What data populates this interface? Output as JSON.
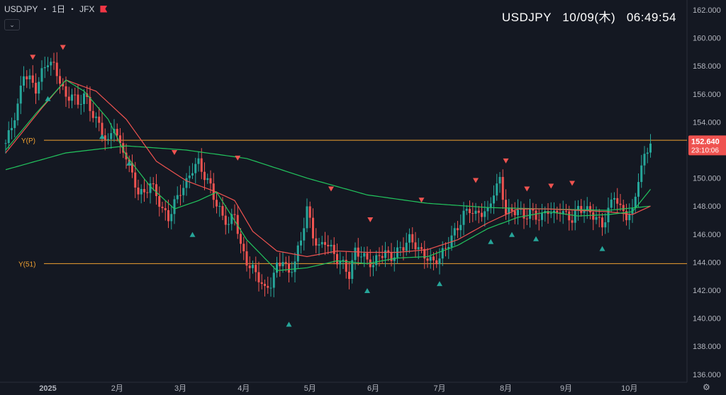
{
  "header": {
    "symbol": "USDJPY",
    "interval": "1日",
    "exchange": "JFX",
    "sep": "・",
    "collapse_icon": "chevron-down-icon",
    "clock": "USDJPY   10/09(木)   06:49:54"
  },
  "colors": {
    "background": "#141822",
    "up": "#26a69a",
    "down": "#ef5350",
    "ma_short": "#ef5350",
    "ma_mid": "#22c55e",
    "level": "#f0a030",
    "last_price_bg": "#ef5350"
  },
  "chart_data": {
    "type": "candlestick",
    "x_tick_labels": [
      "2025",
      "2月",
      "3月",
      "4月",
      "5月",
      "6月",
      "7月",
      "8月",
      "9月",
      "10月"
    ],
    "y_tick_labels": [
      "136.000",
      "138.000",
      "140.000",
      "142.000",
      "144.000",
      "146.000",
      "148.000",
      "150.000",
      "152.000",
      "154.000",
      "156.000",
      "158.000",
      "160.000",
      "162.000"
    ],
    "ylim": [
      135.5,
      162.5
    ],
    "levels": [
      {
        "label": "Y(P)",
        "value": 152.7
      },
      {
        "label": "Y(51)",
        "value": 143.9
      }
    ],
    "last_price": {
      "value": "152.640",
      "countdown": "23:10:06"
    },
    "close_path": [
      [
        0,
        152.5
      ],
      [
        2,
        153.5
      ],
      [
        4,
        155.0
      ],
      [
        6,
        157.5
      ],
      [
        8,
        157.2
      ],
      [
        10,
        156.5
      ],
      [
        12,
        157.5
      ],
      [
        14,
        158.2
      ],
      [
        16,
        157.8
      ],
      [
        18,
        157.0
      ],
      [
        20,
        155.8
      ],
      [
        22,
        156.2
      ],
      [
        24,
        155.2
      ],
      [
        26,
        155.8
      ],
      [
        28,
        154.8
      ],
      [
        30,
        154.2
      ],
      [
        32,
        153.5
      ],
      [
        34,
        152.6
      ],
      [
        36,
        153.8
      ],
      [
        38,
        152.0
      ],
      [
        40,
        151.5
      ],
      [
        42,
        150.2
      ],
      [
        44,
        149.2
      ],
      [
        46,
        149.0
      ],
      [
        48,
        149.6
      ],
      [
        50,
        148.6
      ],
      [
        52,
        147.6
      ],
      [
        54,
        147.2
      ],
      [
        56,
        148.4
      ],
      [
        58,
        149.2
      ],
      [
        60,
        149.6
      ],
      [
        62,
        150.5
      ],
      [
        64,
        151.0
      ],
      [
        66,
        150.2
      ],
      [
        68,
        149.6
      ],
      [
        70,
        148.2
      ],
      [
        72,
        147.2
      ],
      [
        74,
        146.5
      ],
      [
        76,
        147.4
      ],
      [
        78,
        145.2
      ],
      [
        80,
        144.2
      ],
      [
        82,
        143.6
      ],
      [
        84,
        142.8
      ],
      [
        86,
        141.8
      ],
      [
        88,
        142.4
      ],
      [
        90,
        143.8
      ],
      [
        92,
        144.4
      ],
      [
        94,
        143.2
      ],
      [
        96,
        144.0
      ],
      [
        98,
        145.4
      ],
      [
        100,
        147.8
      ],
      [
        102,
        146.0
      ],
      [
        104,
        145.2
      ],
      [
        106,
        145.6
      ],
      [
        108,
        144.8
      ],
      [
        110,
        144.0
      ],
      [
        112,
        143.8
      ],
      [
        114,
        143.2
      ],
      [
        116,
        145.0
      ],
      [
        118,
        144.6
      ],
      [
        120,
        144.0
      ],
      [
        122,
        143.6
      ],
      [
        124,
        144.5
      ],
      [
        126,
        144.8
      ],
      [
        128,
        144.5
      ],
      [
        130,
        144.8
      ],
      [
        132,
        145.0
      ],
      [
        134,
        145.5
      ],
      [
        136,
        145.2
      ],
      [
        138,
        144.8
      ],
      [
        140,
        144.5
      ],
      [
        142,
        144.0
      ],
      [
        144,
        144.2
      ],
      [
        146,
        144.8
      ],
      [
        148,
        145.8
      ],
      [
        150,
        146.6
      ],
      [
        152,
        147.6
      ],
      [
        154,
        147.8
      ],
      [
        156,
        147.2
      ],
      [
        158,
        147.4
      ],
      [
        160,
        147.6
      ],
      [
        162,
        149.2
      ],
      [
        164,
        150.0
      ],
      [
        166,
        147.6
      ],
      [
        168,
        147.4
      ],
      [
        170,
        147.6
      ],
      [
        172,
        147.2
      ],
      [
        174,
        147.8
      ],
      [
        176,
        147.4
      ],
      [
        178,
        147.2
      ],
      [
        180,
        147.6
      ],
      [
        182,
        147.2
      ],
      [
        184,
        147.8
      ],
      [
        186,
        147.5
      ],
      [
        188,
        147.2
      ],
      [
        190,
        147.8
      ],
      [
        192,
        147.6
      ],
      [
        194,
        147.4
      ],
      [
        196,
        147.2
      ],
      [
        198,
        146.8
      ],
      [
        200,
        147.8
      ],
      [
        202,
        148.8
      ],
      [
        204,
        147.6
      ],
      [
        206,
        147.2
      ],
      [
        208,
        147.6
      ],
      [
        210,
        150.2
      ],
      [
        212,
        151.6
      ],
      [
        214,
        152.6
      ]
    ],
    "ma_short_path": [
      [
        0,
        151.8
      ],
      [
        12,
        155.0
      ],
      [
        20,
        157.0
      ],
      [
        30,
        156.2
      ],
      [
        40,
        154.2
      ],
      [
        50,
        151.2
      ],
      [
        60,
        149.8
      ],
      [
        70,
        149.0
      ],
      [
        76,
        148.4
      ],
      [
        82,
        146.2
      ],
      [
        90,
        144.8
      ],
      [
        100,
        144.4
      ],
      [
        110,
        144.8
      ],
      [
        120,
        144.7
      ],
      [
        130,
        144.7
      ],
      [
        140,
        144.9
      ],
      [
        150,
        145.6
      ],
      [
        160,
        146.8
      ],
      [
        170,
        147.8
      ],
      [
        180,
        147.8
      ],
      [
        190,
        147.7
      ],
      [
        200,
        147.6
      ],
      [
        208,
        147.4
      ],
      [
        214,
        148.0
      ]
    ],
    "ma_mid_path": [
      [
        0,
        152.0
      ],
      [
        10,
        154.6
      ],
      [
        20,
        157.0
      ],
      [
        26,
        156.2
      ],
      [
        34,
        154.2
      ],
      [
        40,
        151.6
      ],
      [
        48,
        149.4
      ],
      [
        56,
        147.8
      ],
      [
        64,
        148.4
      ],
      [
        70,
        149.0
      ],
      [
        80,
        145.6
      ],
      [
        90,
        143.4
      ],
      [
        100,
        143.6
      ],
      [
        110,
        144.1
      ],
      [
        120,
        143.9
      ],
      [
        130,
        144.3
      ],
      [
        140,
        144.4
      ],
      [
        150,
        145.2
      ],
      [
        160,
        146.4
      ],
      [
        170,
        147.2
      ],
      [
        180,
        147.6
      ],
      [
        190,
        147.3
      ],
      [
        200,
        147.4
      ],
      [
        208,
        147.6
      ],
      [
        214,
        149.2
      ]
    ],
    "ma_long_path": [
      [
        0,
        150.6
      ],
      [
        20,
        151.8
      ],
      [
        40,
        152.3
      ],
      [
        60,
        152.0
      ],
      [
        80,
        151.4
      ],
      [
        100,
        150.0
      ],
      [
        120,
        148.8
      ],
      [
        140,
        148.2
      ],
      [
        160,
        147.9
      ],
      [
        180,
        147.8
      ],
      [
        200,
        147.7
      ],
      [
        214,
        148.0
      ]
    ],
    "tops": [
      [
        9,
        158.6
      ],
      [
        19,
        159.3
      ],
      [
        56,
        151.8
      ],
      [
        77,
        151.4
      ],
      [
        108,
        149.2
      ],
      [
        121,
        147.0
      ],
      [
        138,
        148.4
      ],
      [
        156,
        149.8
      ],
      [
        166,
        151.2
      ],
      [
        173,
        149.2
      ],
      [
        181,
        149.4
      ],
      [
        188,
        149.6
      ]
    ],
    "bottoms": [
      [
        14,
        155.7
      ],
      [
        32,
        153.0
      ],
      [
        41,
        151.1
      ],
      [
        62,
        146.0
      ],
      [
        94,
        139.6
      ],
      [
        120,
        142.0
      ],
      [
        144,
        142.5
      ],
      [
        161,
        145.5
      ],
      [
        168,
        146.0
      ],
      [
        176,
        145.7
      ],
      [
        198,
        145.0
      ]
    ]
  }
}
